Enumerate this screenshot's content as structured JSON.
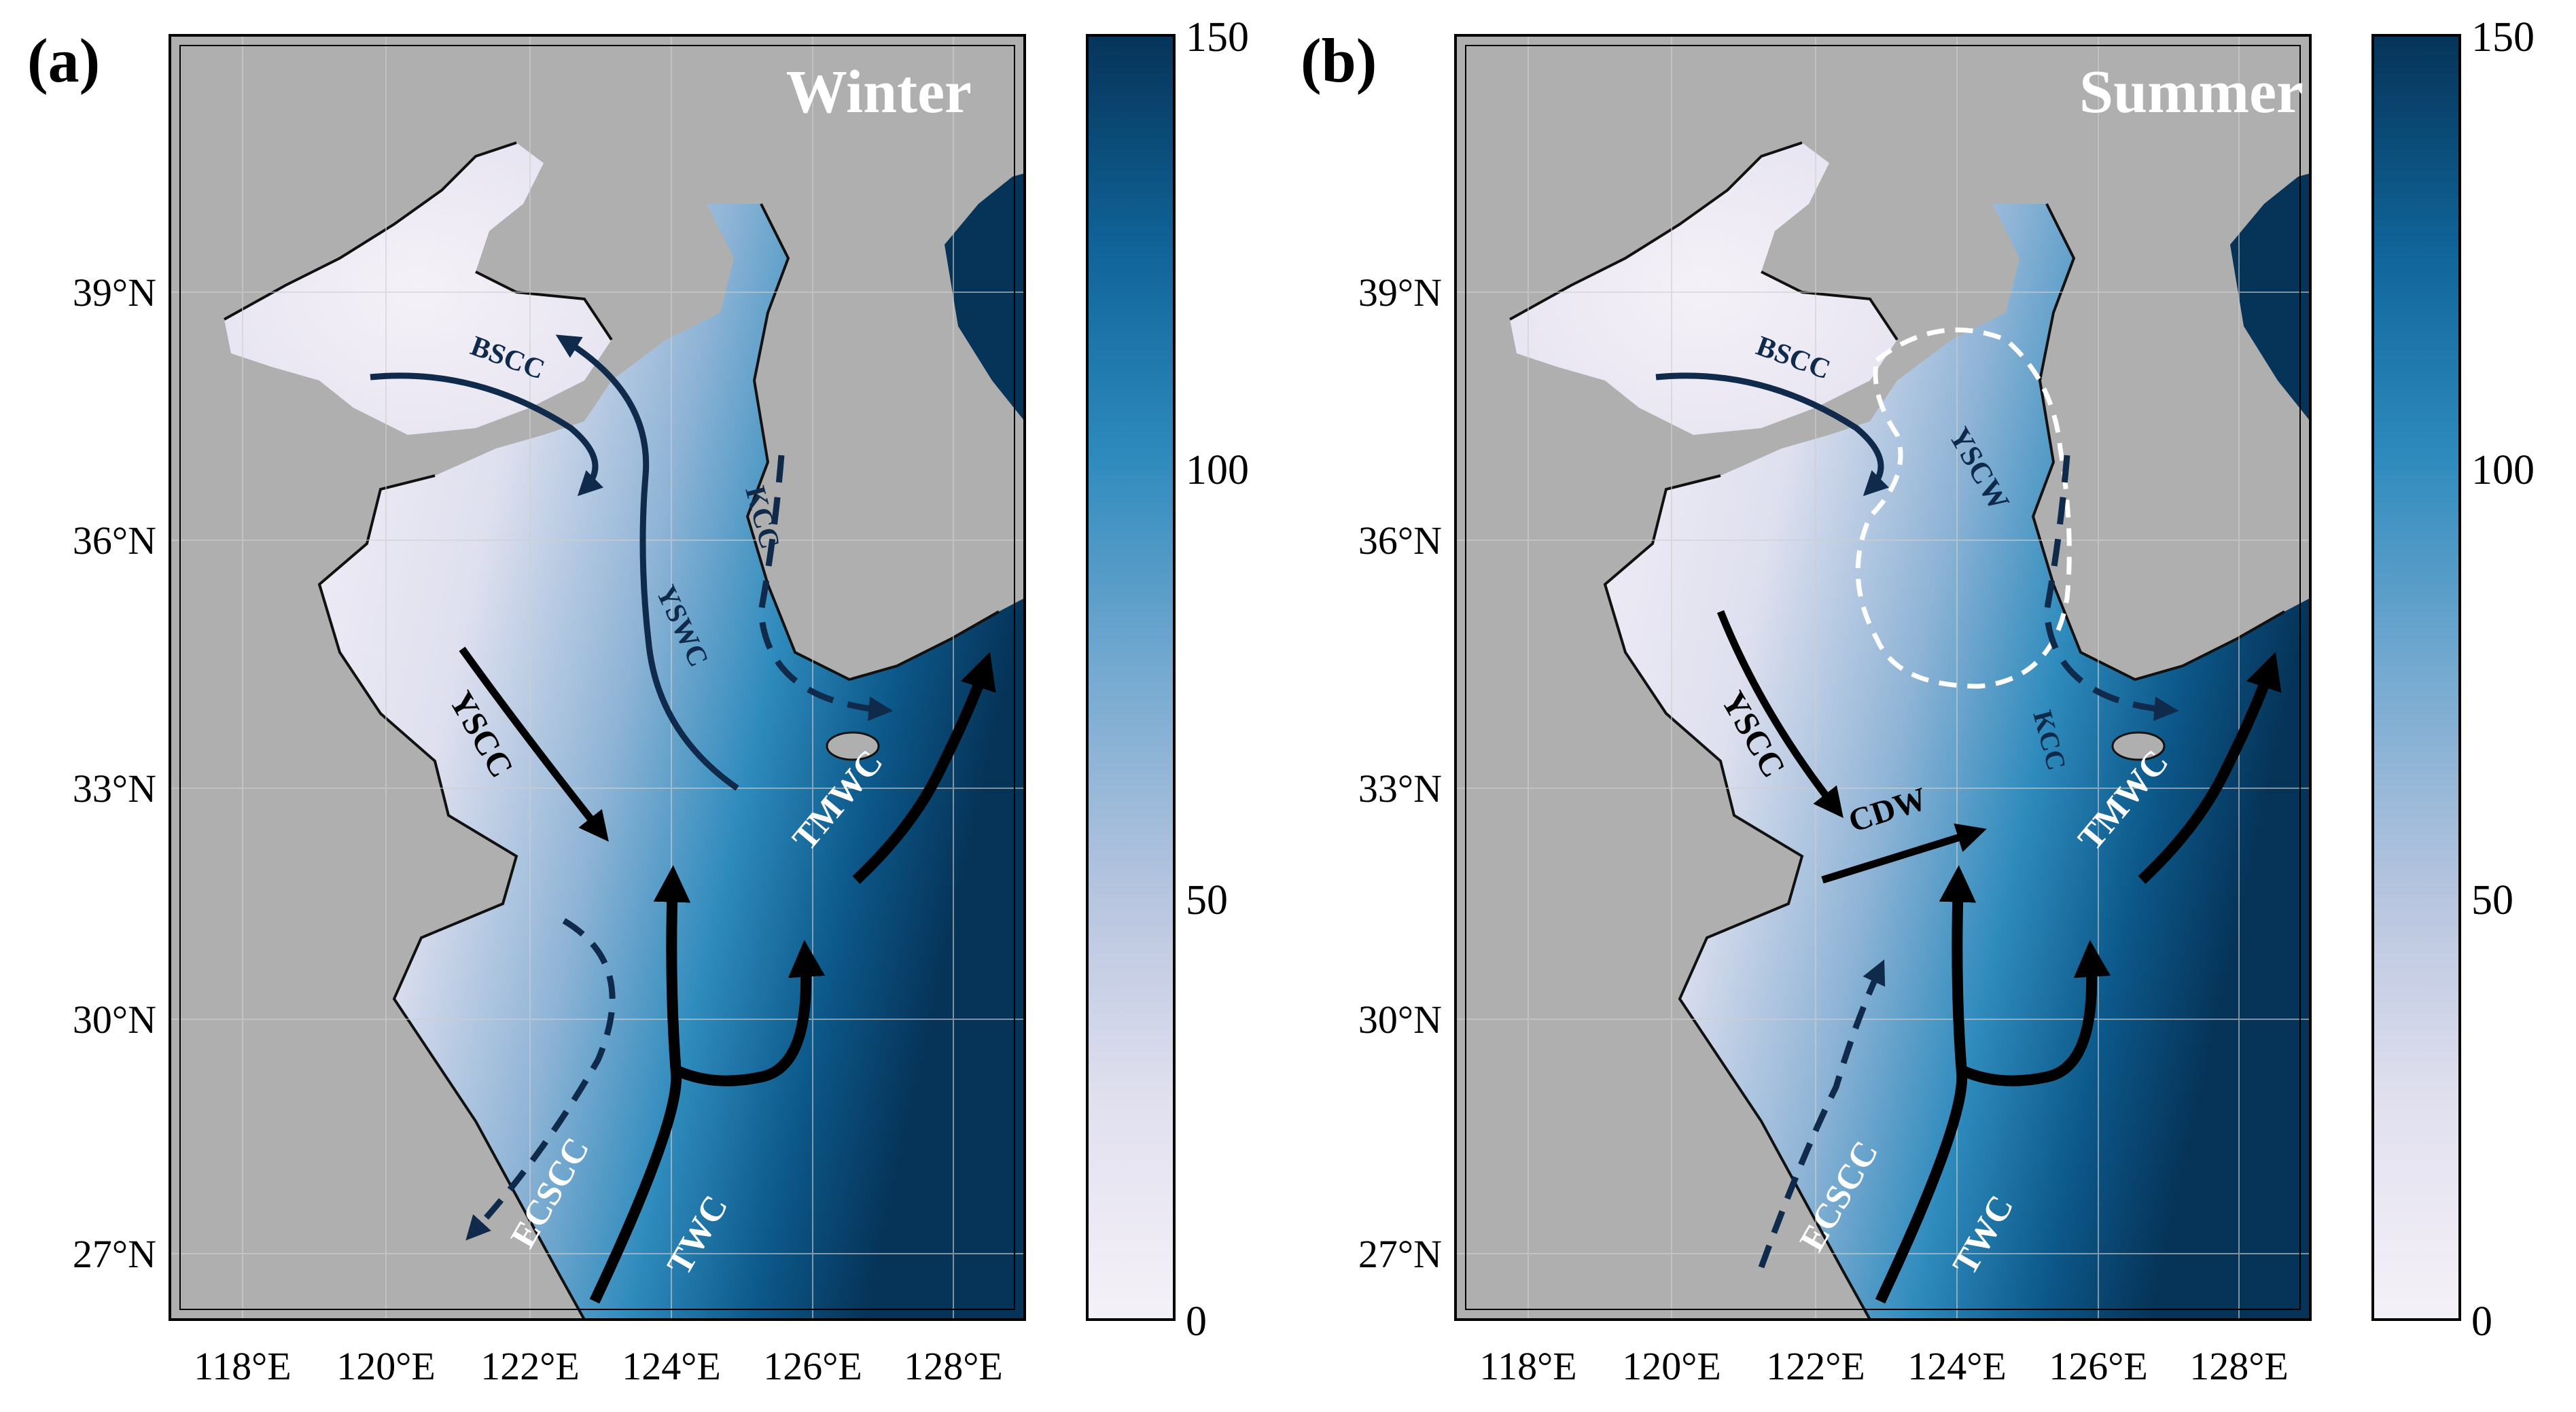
{
  "panels": [
    {
      "label": "(a)",
      "season": "Winter",
      "currents": {
        "bscc": "BSCC",
        "yswc": "YSWC",
        "kcc": "KCC",
        "yscc": "YSCC",
        "tmwc": "TMWC",
        "ecscc": "ECSCC",
        "twc": "TWC"
      }
    },
    {
      "label": "(b)",
      "season": "Summer",
      "currents": {
        "bscc": "BSCC",
        "yscw": "YSCW",
        "kcc": "KCC",
        "yscc": "YSCC",
        "cdw": "CDW",
        "tmwc": "TMWC",
        "ecscc": "ECSCC",
        "twc": "TWC"
      }
    }
  ],
  "axes": {
    "lat_ticks": [
      "39°N",
      "36°N",
      "33°N",
      "30°N",
      "27°N"
    ],
    "lon_ticks": [
      "118°E",
      "120°E",
      "122°E",
      "124°E",
      "126°E",
      "128°E"
    ]
  },
  "colorbar": {
    "ticks": [
      "150",
      "100",
      "50",
      "0"
    ],
    "range": [
      0,
      150
    ],
    "colors": [
      "#f5f1f8",
      "#eceaf4",
      "#e1e0ef",
      "#d4d3ea",
      "#c6cbe4",
      "#b7c5df",
      "#a5bddb",
      "#8fb4d6",
      "#77aad1",
      "#5ea1ca",
      "#4698c3",
      "#2f8bbd",
      "#1c7eb3",
      "#1571a7",
      "#10659a",
      "#0c588a",
      "#0a4c7a",
      "#08406a",
      "#063459"
    ]
  },
  "colors": {
    "land": "#afafaf",
    "coast": "#111111",
    "deep_water": "#063459",
    "current_dark": "#0f2a4a",
    "current_black": "#000000",
    "label_white": "#ffffff"
  }
}
